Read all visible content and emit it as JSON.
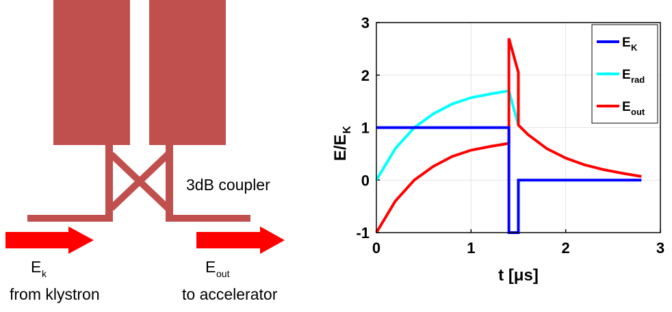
{
  "diagram": {
    "coupler_label": "3dB coupler",
    "input": {
      "symbol": "E",
      "subscript": "k",
      "caption": "from klystron"
    },
    "output": {
      "symbol": "E",
      "subscript": "out",
      "caption": "to accelerator"
    }
  },
  "chart_data": {
    "type": "line",
    "xlabel": "t [μs]",
    "ylabel": {
      "text": "E/E",
      "subscript": "K"
    },
    "xlim": [
      0,
      3
    ],
    "ylim": [
      -1,
      3
    ],
    "xticks": [
      0,
      1,
      2,
      3
    ],
    "yticks": [
      -1,
      0,
      1,
      2,
      3
    ],
    "grid": true,
    "legend": "upper right",
    "series": [
      {
        "name": "E",
        "subscript": "K",
        "color": "#0000ff",
        "x": [
          0,
          1.4,
          1.4,
          1.5,
          1.5,
          2.8
        ],
        "values": [
          1,
          1,
          -1,
          -1,
          0,
          0
        ]
      },
      {
        "name": "E",
        "subscript": "rad",
        "color": "#00ffff",
        "x": [
          0,
          0.2,
          0.4,
          0.6,
          0.8,
          1.0,
          1.2,
          1.4,
          1.5
        ],
        "values": [
          0,
          0.6,
          1.0,
          1.26,
          1.45,
          1.57,
          1.64,
          1.7,
          1.05
        ]
      },
      {
        "name": "E",
        "subscript": "out",
        "color": "#ff0000",
        "x": [
          0,
          0.2,
          0.4,
          0.6,
          0.8,
          1.0,
          1.2,
          1.4,
          1.4,
          1.5,
          1.5,
          1.6,
          1.8,
          2.0,
          2.2,
          2.4,
          2.6,
          2.8
        ],
        "values": [
          -1,
          -0.4,
          0,
          0.26,
          0.45,
          0.57,
          0.64,
          0.7,
          2.7,
          2.05,
          1.05,
          0.87,
          0.6,
          0.42,
          0.29,
          0.2,
          0.13,
          0.07
        ]
      }
    ]
  }
}
